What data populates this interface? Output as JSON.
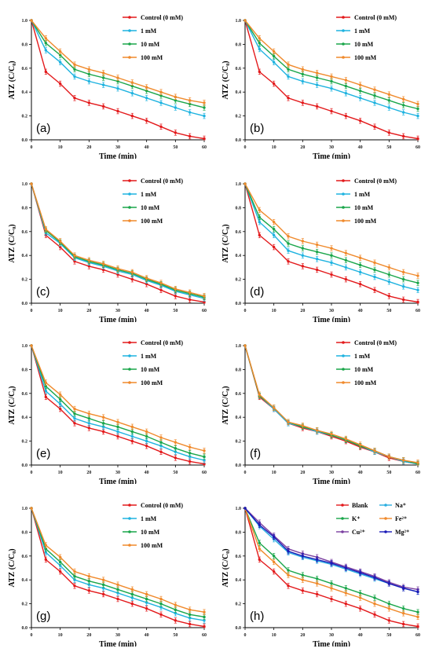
{
  "figure": {
    "title": ""
  },
  "colors": {
    "control": "#e31a1c",
    "1mM": "#1fb3e0",
    "10mM": "#1aa64a",
    "100mM": "#f08a2c",
    "blank": "#e31a1c",
    "na": "#29aee0",
    "k": "#1aa64a",
    "fe": "#f08a2c",
    "cu": "#7b3fa0",
    "mg": "#1a1ab8"
  },
  "chart_data": [
    {
      "type": "line",
      "panel_label": "(a)",
      "xlabel": "Time (min)",
      "ylabel": "ATZ (C/C₀)",
      "xlim": [
        0,
        60
      ],
      "ylim": [
        0,
        1.0
      ],
      "xticks": [
        "0",
        "10",
        "20",
        "30",
        "40",
        "50",
        "60"
      ],
      "yticks": [
        "0.0",
        "0.2",
        "0.4",
        "0.6",
        "0.8",
        "1.0"
      ],
      "legend_position": "top-right",
      "grid": false,
      "x": [
        0,
        5,
        10,
        15,
        20,
        25,
        30,
        35,
        40,
        45,
        50,
        55,
        60
      ],
      "series": [
        {
          "name": "Control  (0 mM)",
          "color_key": "control",
          "values": [
            1.0,
            0.57,
            0.47,
            0.35,
            0.31,
            0.28,
            0.24,
            0.2,
            0.16,
            0.11,
            0.06,
            0.03,
            0.01
          ]
        },
        {
          "name": "1 mM",
          "color_key": "1mM",
          "values": [
            1.0,
            0.75,
            0.65,
            0.53,
            0.49,
            0.46,
            0.43,
            0.39,
            0.35,
            0.31,
            0.27,
            0.23,
            0.2
          ]
        },
        {
          "name": "10 mM",
          "color_key": "10mM",
          "values": [
            1.0,
            0.81,
            0.71,
            0.59,
            0.55,
            0.52,
            0.49,
            0.45,
            0.41,
            0.37,
            0.33,
            0.3,
            0.27
          ]
        },
        {
          "name": "100 mM",
          "color_key": "100mM",
          "values": [
            1.0,
            0.85,
            0.74,
            0.63,
            0.59,
            0.56,
            0.52,
            0.48,
            0.44,
            0.4,
            0.36,
            0.33,
            0.31
          ]
        }
      ]
    },
    {
      "type": "line",
      "panel_label": "(b)",
      "xlabel": "Time (min)",
      "ylabel": "ATZ (C/C₀)",
      "xlim": [
        0,
        60
      ],
      "ylim": [
        0,
        1.0
      ],
      "xticks": [
        "0",
        "10",
        "20",
        "30",
        "40",
        "50",
        "60"
      ],
      "yticks": [
        "0.0",
        "0.2",
        "0.4",
        "0.6",
        "0.8",
        "1.0"
      ],
      "legend_position": "top-right",
      "grid": false,
      "x": [
        0,
        5,
        10,
        15,
        20,
        25,
        30,
        35,
        40,
        45,
        50,
        55,
        60
      ],
      "series": [
        {
          "name": "Control  (0 mM)",
          "color_key": "control",
          "values": [
            1.0,
            0.57,
            0.47,
            0.35,
            0.31,
            0.28,
            0.24,
            0.2,
            0.16,
            0.11,
            0.06,
            0.03,
            0.01
          ]
        },
        {
          "name": "1 mM",
          "color_key": "1mM",
          "values": [
            1.0,
            0.76,
            0.65,
            0.53,
            0.49,
            0.46,
            0.43,
            0.39,
            0.35,
            0.31,
            0.27,
            0.23,
            0.2
          ]
        },
        {
          "name": "10 mM",
          "color_key": "10mM",
          "values": [
            1.0,
            0.81,
            0.7,
            0.59,
            0.55,
            0.52,
            0.49,
            0.45,
            0.41,
            0.37,
            0.33,
            0.29,
            0.26
          ]
        },
        {
          "name": "100 mM",
          "color_key": "100mM",
          "values": [
            1.0,
            0.85,
            0.74,
            0.63,
            0.59,
            0.56,
            0.53,
            0.5,
            0.46,
            0.42,
            0.38,
            0.34,
            0.3
          ]
        }
      ]
    },
    {
      "type": "line",
      "panel_label": "(c)",
      "xlabel": "Time (min)",
      "ylabel": "ATZ (C/C₀)",
      "xlim": [
        0,
        60
      ],
      "ylim": [
        0,
        1.0
      ],
      "xticks": [
        "0",
        "10",
        "20",
        "30",
        "40",
        "50",
        "60"
      ],
      "yticks": [
        "0.0",
        "0.2",
        "0.4",
        "0.6",
        "0.8",
        "1.0"
      ],
      "legend_position": "top-right",
      "grid": false,
      "x": [
        0,
        5,
        10,
        15,
        20,
        25,
        30,
        35,
        40,
        45,
        50,
        55,
        60
      ],
      "series": [
        {
          "name": "Control  (0 mM)",
          "color_key": "control",
          "values": [
            1.0,
            0.57,
            0.47,
            0.35,
            0.31,
            0.28,
            0.24,
            0.2,
            0.16,
            0.11,
            0.06,
            0.03,
            0.01
          ]
        },
        {
          "name": "1 mM",
          "color_key": "1mM",
          "values": [
            1.0,
            0.59,
            0.5,
            0.38,
            0.34,
            0.31,
            0.27,
            0.24,
            0.19,
            0.15,
            0.1,
            0.07,
            0.04
          ]
        },
        {
          "name": "10 mM",
          "color_key": "10mM",
          "values": [
            1.0,
            0.61,
            0.51,
            0.39,
            0.35,
            0.32,
            0.28,
            0.25,
            0.2,
            0.16,
            0.11,
            0.08,
            0.05
          ]
        },
        {
          "name": "100 mM",
          "color_key": "100mM",
          "values": [
            1.0,
            0.62,
            0.52,
            0.4,
            0.36,
            0.33,
            0.29,
            0.26,
            0.21,
            0.17,
            0.12,
            0.09,
            0.06
          ]
        }
      ]
    },
    {
      "type": "line",
      "panel_label": "(d)",
      "xlabel": "Time (min)",
      "ylabel": "ATZ (C/C₀)",
      "xlim": [
        0,
        60
      ],
      "ylim": [
        0,
        1.0
      ],
      "xticks": [
        "0",
        "10",
        "20",
        "30",
        "40",
        "50",
        "60"
      ],
      "yticks": [
        "0.0",
        "0.2",
        "0.4",
        "0.6",
        "0.8",
        "1.0"
      ],
      "legend_position": "top-right",
      "grid": false,
      "x": [
        0,
        5,
        10,
        15,
        20,
        25,
        30,
        35,
        40,
        45,
        50,
        55,
        60
      ],
      "series": [
        {
          "name": "Control  (0 mM)",
          "color_key": "control",
          "values": [
            1.0,
            0.57,
            0.47,
            0.35,
            0.31,
            0.28,
            0.24,
            0.2,
            0.16,
            0.11,
            0.06,
            0.03,
            0.01
          ]
        },
        {
          "name": "1 mM",
          "color_key": "1mM",
          "values": [
            1.0,
            0.68,
            0.57,
            0.44,
            0.4,
            0.37,
            0.34,
            0.3,
            0.26,
            0.22,
            0.18,
            0.14,
            0.11
          ]
        },
        {
          "name": "10 mM",
          "color_key": "10mM",
          "values": [
            1.0,
            0.72,
            0.62,
            0.5,
            0.46,
            0.43,
            0.4,
            0.36,
            0.32,
            0.28,
            0.24,
            0.2,
            0.17
          ]
        },
        {
          "name": "100 mM",
          "color_key": "100mM",
          "values": [
            1.0,
            0.78,
            0.68,
            0.56,
            0.52,
            0.49,
            0.46,
            0.42,
            0.38,
            0.34,
            0.3,
            0.26,
            0.23
          ]
        }
      ]
    },
    {
      "type": "line",
      "panel_label": "(e)",
      "xlabel": "Time (min)",
      "ylabel": "ATZ (C/C₀)",
      "xlim": [
        0,
        60
      ],
      "ylim": [
        0,
        1.0
      ],
      "xticks": [
        "0",
        "10",
        "20",
        "30",
        "40",
        "50",
        "60"
      ],
      "yticks": [
        "0.0",
        "0.2",
        "0.4",
        "0.6",
        "0.8",
        "1.0"
      ],
      "legend_position": "top-right",
      "grid": false,
      "x": [
        0,
        5,
        10,
        15,
        20,
        25,
        30,
        35,
        40,
        45,
        50,
        55,
        60
      ],
      "series": [
        {
          "name": "Control  (0 mM)",
          "color_key": "control",
          "values": [
            1.0,
            0.57,
            0.47,
            0.35,
            0.31,
            0.28,
            0.24,
            0.2,
            0.16,
            0.11,
            0.06,
            0.03,
            0.01
          ]
        },
        {
          "name": "1 mM",
          "color_key": "1mM",
          "values": [
            1.0,
            0.62,
            0.51,
            0.39,
            0.35,
            0.32,
            0.28,
            0.24,
            0.2,
            0.16,
            0.11,
            0.07,
            0.04
          ]
        },
        {
          "name": "10 mM",
          "color_key": "10mM",
          "values": [
            1.0,
            0.66,
            0.55,
            0.43,
            0.39,
            0.35,
            0.32,
            0.28,
            0.24,
            0.19,
            0.14,
            0.1,
            0.07
          ]
        },
        {
          "name": "100 mM",
          "color_key": "100mM",
          "values": [
            1.0,
            0.69,
            0.59,
            0.47,
            0.43,
            0.4,
            0.36,
            0.32,
            0.28,
            0.23,
            0.19,
            0.15,
            0.12
          ]
        }
      ]
    },
    {
      "type": "line",
      "panel_label": "(f)",
      "xlabel": "Time (min)",
      "ylabel": "ATZ (C/C₀)",
      "xlim": [
        0,
        60
      ],
      "ylim": [
        0,
        1.0
      ],
      "xticks": [
        "0",
        "10",
        "20",
        "30",
        "40",
        "50",
        "60"
      ],
      "yticks": [
        "0.0",
        "0.2",
        "0.4",
        "0.6",
        "0.8",
        "1.0"
      ],
      "legend_position": "top-right",
      "grid": false,
      "x": [
        0,
        5,
        10,
        15,
        20,
        25,
        30,
        35,
        40,
        45,
        50,
        55,
        60
      ],
      "series": [
        {
          "name": "Control  (0 mM)",
          "color_key": "control",
          "values": [
            1.0,
            0.57,
            0.47,
            0.35,
            0.31,
            0.28,
            0.24,
            0.2,
            0.15,
            0.11,
            0.06,
            0.03,
            0.01
          ]
        },
        {
          "name": "1 mM",
          "color_key": "1mM",
          "values": [
            1.0,
            0.58,
            0.47,
            0.35,
            0.32,
            0.28,
            0.25,
            0.21,
            0.16,
            0.11,
            0.07,
            0.03,
            0.01
          ]
        },
        {
          "name": "10 mM",
          "color_key": "10mM",
          "values": [
            1.0,
            0.58,
            0.48,
            0.36,
            0.32,
            0.29,
            0.25,
            0.21,
            0.16,
            0.12,
            0.07,
            0.04,
            0.01
          ]
        },
        {
          "name": "100 mM",
          "color_key": "100mM",
          "values": [
            1.0,
            0.59,
            0.48,
            0.36,
            0.33,
            0.29,
            0.26,
            0.22,
            0.17,
            0.12,
            0.07,
            0.04,
            0.02
          ]
        }
      ]
    },
    {
      "type": "line",
      "panel_label": "(g)",
      "xlabel": "Time (min)",
      "ylabel": "ATZ (C/C₀)",
      "xlim": [
        0,
        60
      ],
      "ylim": [
        0,
        1.0
      ],
      "xticks": [
        "0",
        "10",
        "20",
        "30",
        "40",
        "50",
        "60"
      ],
      "yticks": [
        "0.0",
        "0.2",
        "0.4",
        "0.6",
        "0.8",
        "1.0"
      ],
      "legend_position": "top-right",
      "grid": false,
      "x": [
        0,
        5,
        10,
        15,
        20,
        25,
        30,
        35,
        40,
        45,
        50,
        55,
        60
      ],
      "series": [
        {
          "name": "Control  (0 mM)",
          "color_key": "control",
          "values": [
            1.0,
            0.57,
            0.47,
            0.35,
            0.31,
            0.28,
            0.24,
            0.2,
            0.16,
            0.11,
            0.06,
            0.03,
            0.01
          ]
        },
        {
          "name": "1 mM",
          "color_key": "1mM",
          "values": [
            1.0,
            0.63,
            0.52,
            0.4,
            0.36,
            0.33,
            0.29,
            0.25,
            0.21,
            0.17,
            0.12,
            0.08,
            0.06
          ]
        },
        {
          "name": "10 mM",
          "color_key": "10mM",
          "values": [
            1.0,
            0.66,
            0.55,
            0.43,
            0.39,
            0.36,
            0.32,
            0.28,
            0.24,
            0.2,
            0.15,
            0.11,
            0.09
          ]
        },
        {
          "name": "100 mM",
          "color_key": "100mM",
          "values": [
            1.0,
            0.69,
            0.59,
            0.47,
            0.43,
            0.4,
            0.36,
            0.32,
            0.28,
            0.24,
            0.19,
            0.15,
            0.13
          ]
        }
      ]
    },
    {
      "type": "line",
      "panel_label": "(h)",
      "xlabel": "Time (min)",
      "ylabel": "ATZ (C/C₀)",
      "xlim": [
        0,
        60
      ],
      "ylim": [
        0,
        1.0
      ],
      "xticks": [
        "0",
        "10",
        "20",
        "30",
        "40",
        "50",
        "60"
      ],
      "yticks": [
        "0.0",
        "0.2",
        "0.4",
        "0.6",
        "0.8",
        "1.0"
      ],
      "legend_position": "top-right",
      "legend_columns": 2,
      "grid": false,
      "x": [
        0,
        5,
        10,
        15,
        20,
        25,
        30,
        35,
        40,
        45,
        50,
        55,
        60
      ],
      "series": [
        {
          "name": "Blank",
          "color_key": "blank",
          "values": [
            1.0,
            0.57,
            0.47,
            0.35,
            0.31,
            0.28,
            0.24,
            0.2,
            0.16,
            0.11,
            0.06,
            0.03,
            0.01
          ]
        },
        {
          "name": "Na⁺",
          "color_key": "na",
          "values": [
            1.0,
            0.85,
            0.74,
            0.63,
            0.59,
            0.56,
            0.53,
            0.49,
            0.45,
            0.41,
            0.37,
            0.33,
            0.3
          ]
        },
        {
          "name": "K⁺",
          "color_key": "k",
          "values": [
            1.0,
            0.71,
            0.6,
            0.48,
            0.44,
            0.41,
            0.37,
            0.33,
            0.29,
            0.25,
            0.2,
            0.16,
            0.13
          ]
        },
        {
          "name": "Fe²⁺",
          "color_key": "fe",
          "values": [
            1.0,
            0.66,
            0.55,
            0.44,
            0.4,
            0.37,
            0.33,
            0.29,
            0.25,
            0.2,
            0.16,
            0.12,
            0.09
          ]
        },
        {
          "name": "Cu²⁺",
          "color_key": "cu",
          "values": [
            1.0,
            0.88,
            0.77,
            0.66,
            0.62,
            0.59,
            0.55,
            0.51,
            0.47,
            0.43,
            0.38,
            0.34,
            0.32
          ]
        },
        {
          "name": "Mg²⁺",
          "color_key": "mg",
          "values": [
            1.0,
            0.86,
            0.76,
            0.64,
            0.6,
            0.57,
            0.54,
            0.5,
            0.46,
            0.42,
            0.37,
            0.33,
            0.3
          ]
        }
      ]
    }
  ]
}
